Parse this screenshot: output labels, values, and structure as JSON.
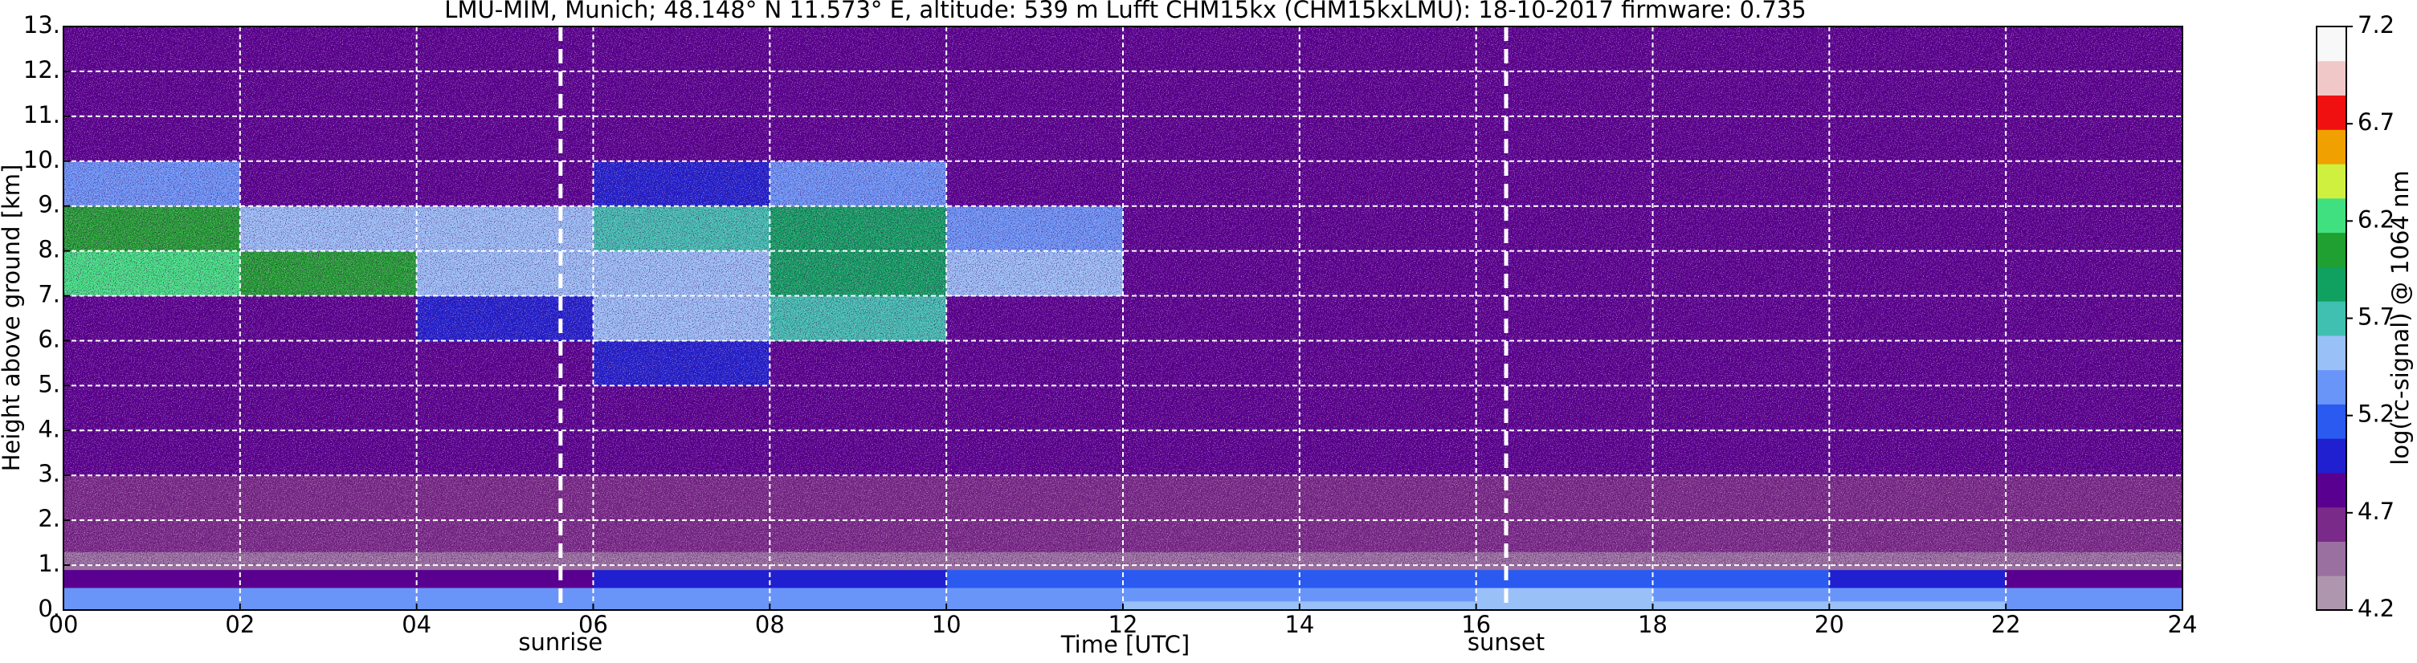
{
  "chart_data": {
    "type": "heatmap",
    "title": "LMU-MIM, Munich; 48.148° N 11.573° E, altitude: 539 m    Lufft CHM15kx (CHM15kxLMU): 18-10-2017    firmware: 0.735",
    "x_label": "Time [UTC]",
    "y_label": "Height above ground [km]",
    "colorbar_label": "log(rc-signal) @ 1064 nm",
    "x_edges": [
      0,
      2,
      4,
      6,
      8,
      10,
      12,
      14,
      16,
      18,
      20,
      22,
      24
    ],
    "y_edges": [
      0,
      0.2,
      0.5,
      0.9,
      1.3,
      2,
      3,
      4,
      5,
      6,
      7,
      8,
      9,
      10,
      11,
      13
    ],
    "z": [
      [
        5.4,
        5.4,
        5.4,
        5.4,
        5.4,
        5.4,
        5.5,
        5.5,
        5.6,
        5.6,
        5.5,
        5.4
      ],
      [
        5.3,
        5.3,
        5.3,
        5.3,
        5.3,
        5.3,
        5.4,
        5.4,
        5.5,
        5.4,
        5.4,
        5.3
      ],
      [
        4.9,
        4.9,
        4.9,
        5.0,
        5.0,
        5.1,
        5.1,
        5.1,
        5.1,
        5.1,
        5.0,
        4.9
      ],
      [
        4.5,
        4.5,
        4.5,
        4.5,
        4.5,
        4.5,
        4.5,
        4.5,
        4.5,
        4.5,
        4.5,
        4.5
      ],
      [
        4.6,
        4.6,
        4.6,
        4.6,
        4.6,
        4.6,
        4.6,
        4.6,
        4.6,
        4.6,
        4.6,
        4.6
      ],
      [
        4.7,
        4.7,
        4.7,
        4.7,
        4.7,
        4.7,
        4.7,
        4.7,
        4.7,
        4.7,
        4.7,
        4.7
      ],
      [
        4.8,
        4.8,
        4.8,
        4.8,
        4.8,
        4.8,
        4.8,
        4.8,
        4.8,
        4.8,
        4.8,
        4.8
      ],
      [
        4.8,
        4.8,
        4.8,
        4.8,
        4.8,
        4.8,
        4.8,
        4.8,
        4.8,
        4.8,
        4.8,
        4.8
      ],
      [
        4.8,
        4.8,
        4.8,
        5.0,
        4.9,
        4.8,
        4.8,
        4.8,
        4.8,
        4.8,
        4.8,
        4.8
      ],
      [
        4.8,
        4.9,
        5.0,
        5.6,
        5.7,
        4.9,
        4.8,
        4.8,
        4.8,
        4.8,
        4.8,
        4.8
      ],
      [
        6.2,
        6.0,
        5.6,
        5.5,
        5.8,
        5.6,
        4.9,
        4.8,
        4.8,
        4.8,
        4.8,
        4.8
      ],
      [
        6.0,
        5.6,
        5.5,
        5.7,
        5.8,
        5.4,
        4.8,
        4.8,
        4.8,
        4.8,
        4.8,
        4.8
      ],
      [
        5.4,
        4.9,
        4.9,
        5.0,
        5.3,
        4.9,
        4.8,
        4.8,
        4.8,
        4.8,
        4.8,
        4.8
      ],
      [
        4.8,
        4.8,
        4.8,
        4.9,
        4.9,
        4.8,
        4.8,
        4.8,
        4.8,
        4.8,
        4.8,
        4.8
      ],
      [
        4.8,
        4.8,
        4.8,
        4.8,
        4.8,
        4.8,
        4.8,
        4.8,
        4.8,
        4.8,
        4.8,
        4.8
      ]
    ],
    "xlim": [
      0,
      24
    ],
    "xticks": [
      {
        "value": 0,
        "label": "00"
      },
      {
        "value": 2,
        "label": "02"
      },
      {
        "value": 4,
        "label": "04"
      },
      {
        "value": 6,
        "label": "06"
      },
      {
        "value": 8,
        "label": "08"
      },
      10,
      12,
      14,
      16,
      18,
      20,
      22,
      24
    ],
    "ylim": [
      0,
      13
    ],
    "yticks": [
      {
        "value": 0,
        "label": "0."
      },
      {
        "value": 1,
        "label": "1."
      },
      {
        "value": 2,
        "label": "2."
      },
      {
        "value": 3,
        "label": "3."
      },
      {
        "value": 4,
        "label": "4."
      },
      {
        "value": 5,
        "label": "5."
      },
      {
        "value": 6,
        "label": "6."
      },
      {
        "value": 7,
        "label": "7."
      },
      {
        "value": 8,
        "label": "8."
      },
      {
        "value": 9,
        "label": "9."
      },
      {
        "value": 10,
        "label": "10."
      },
      {
        "value": 11,
        "label": "11."
      },
      {
        "value": 12,
        "label": "12."
      },
      {
        "value": 13,
        "label": "13."
      }
    ],
    "zlim": [
      4.2,
      7.2
    ],
    "zticks": [
      4.2,
      4.7,
      5.2,
      5.7,
      6.2,
      6.7,
      7.2
    ],
    "colors": [
      "#ae97ae",
      "#9a70a0",
      "#7a2a88",
      "#5a0090",
      "#2020d0",
      "#2a5af0",
      "#6a95f8",
      "#9ac0f8",
      "#40c0b0",
      "#10a060",
      "#20a030",
      "#40e080",
      "#d0f040",
      "#f0a000",
      "#f01010",
      "#f0c8c8",
      "#f8f8f8"
    ],
    "grid": true,
    "annotations": [
      {
        "text": "sunrise",
        "x": 5.63
      },
      {
        "text": "sunset",
        "x": 16.34
      }
    ]
  }
}
